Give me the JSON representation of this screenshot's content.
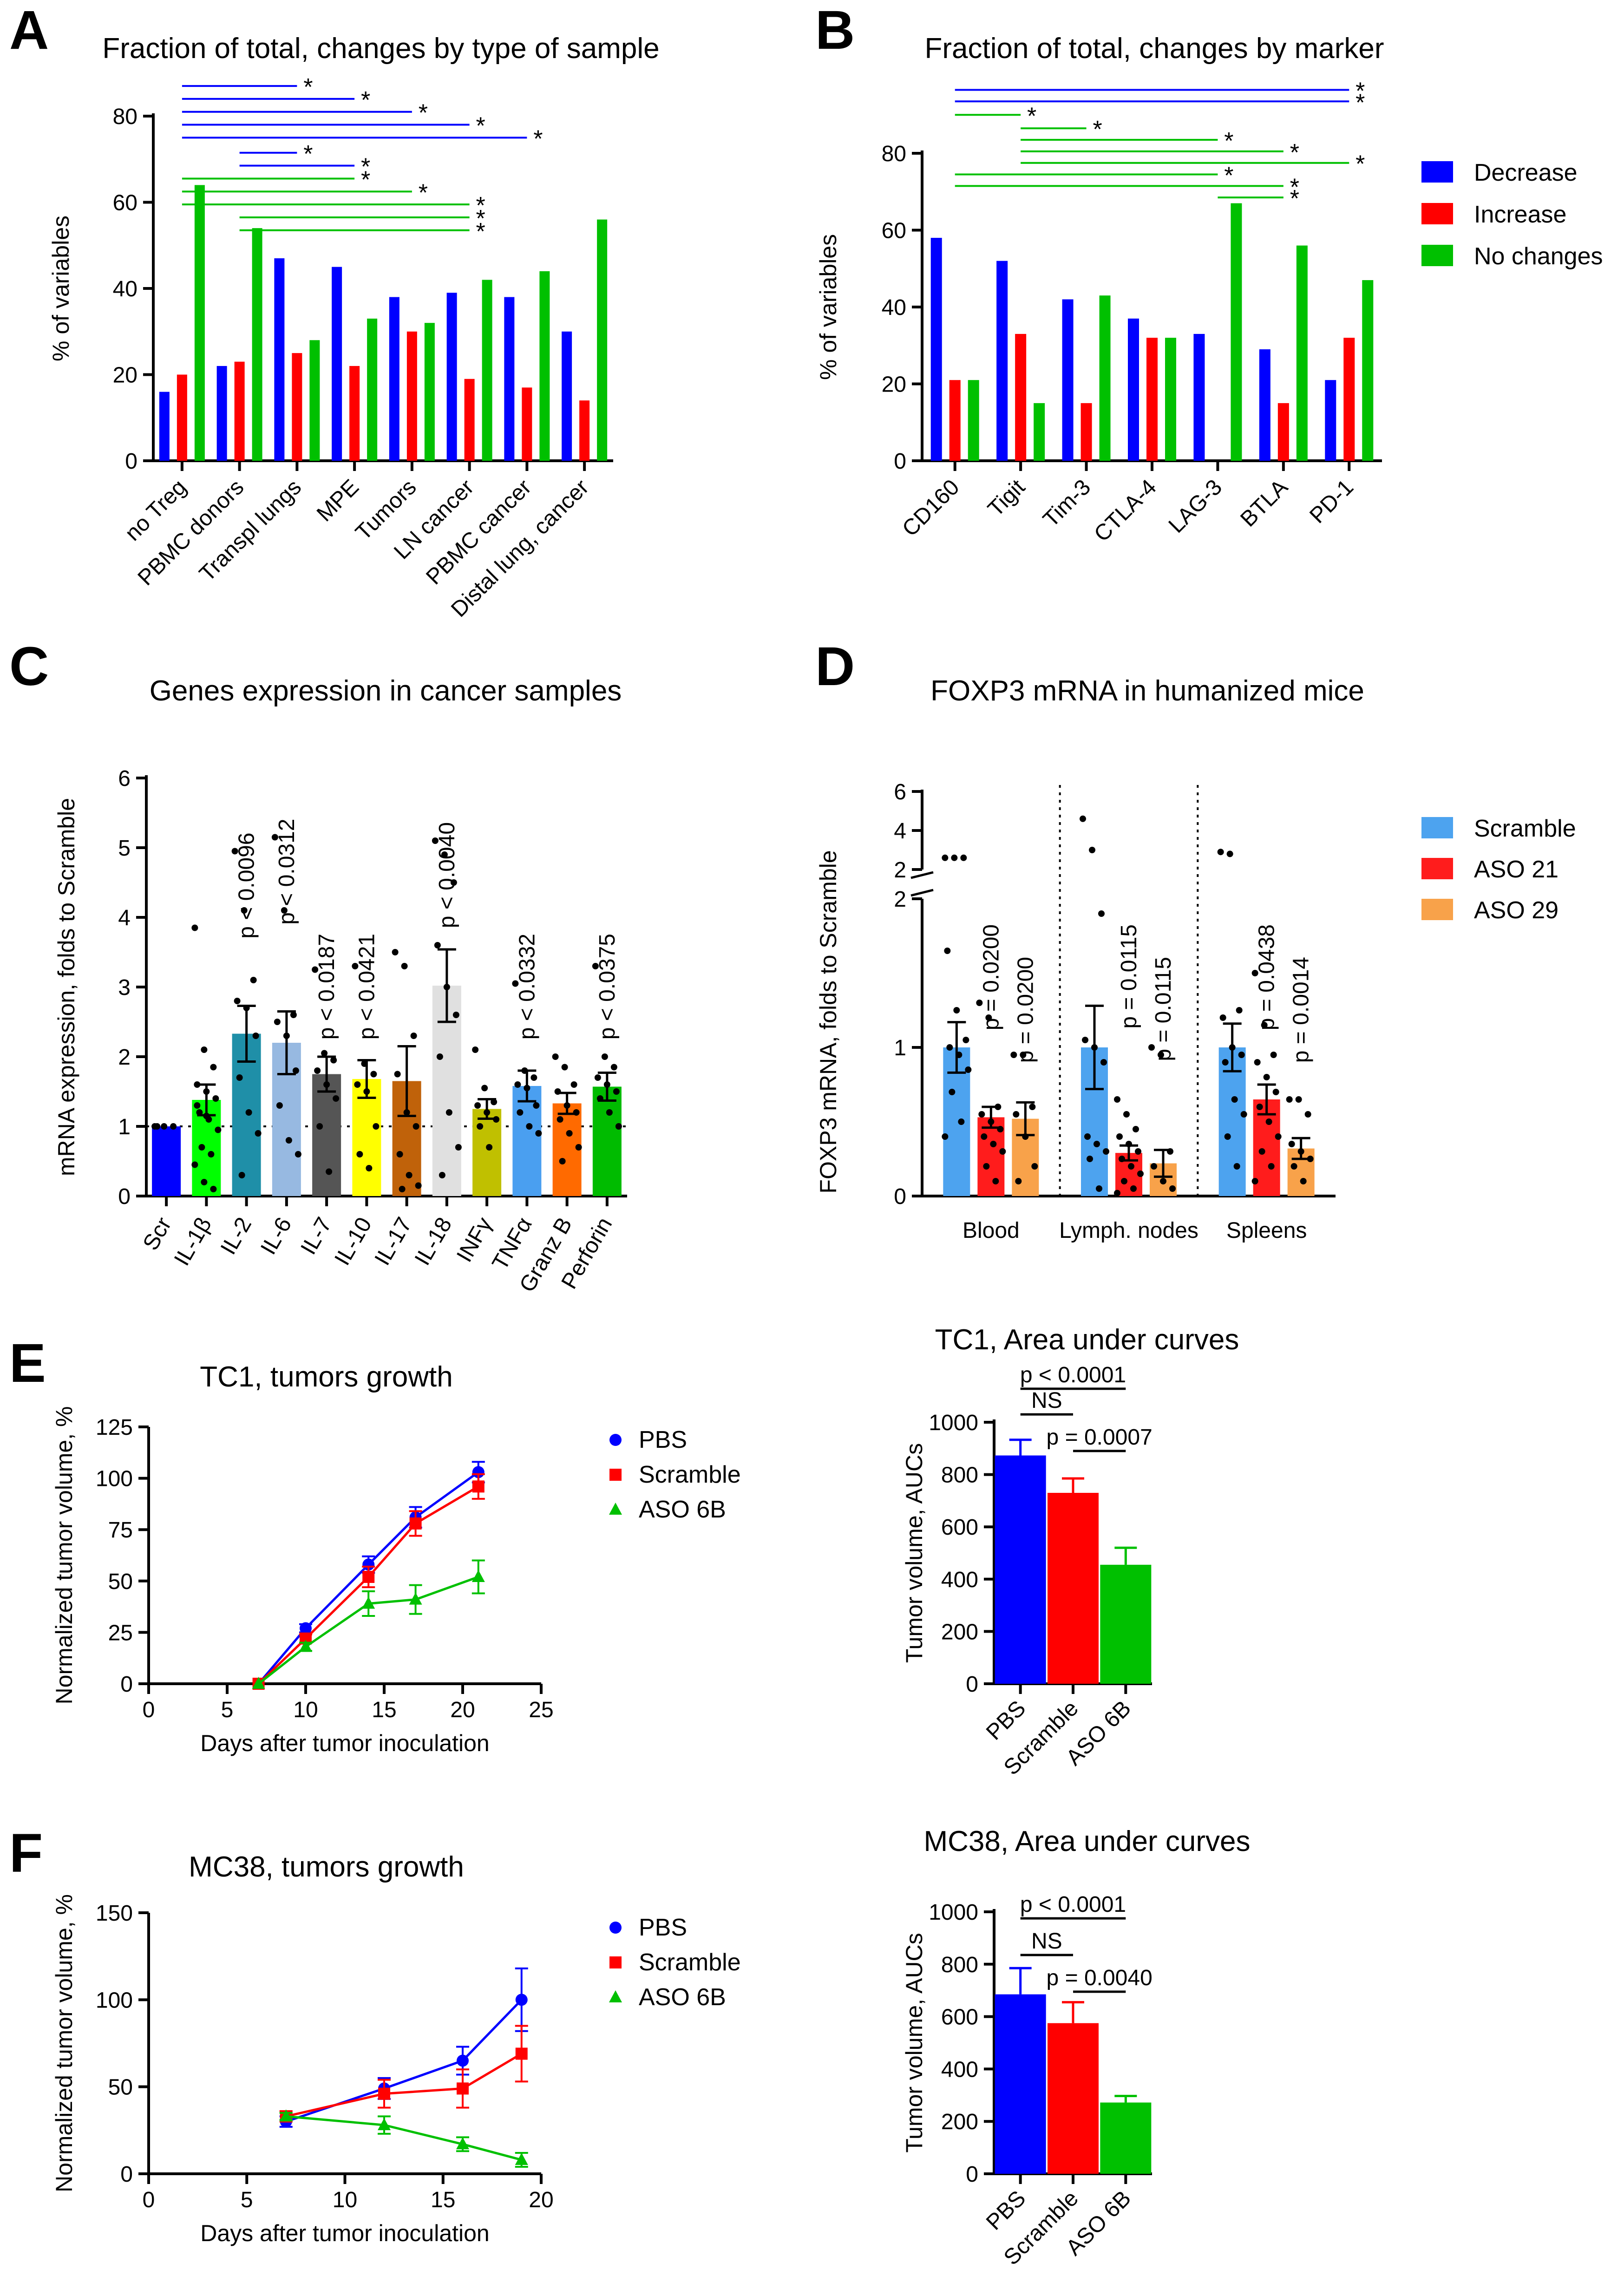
{
  "chart_data": [
    {
      "panel": "A",
      "type": "bar",
      "title": "Fraction of total, changes by type of sample",
      "ylabel": "% of variables",
      "xlabel": "",
      "ylim": [
        0,
        80
      ],
      "yticks": [
        0,
        20,
        40,
        60,
        80
      ],
      "categories": [
        "no Treg",
        "PBMC donors",
        "Transpl lungs",
        "MPE",
        "Tumors",
        "LN cancer",
        "PBMC cancer",
        "Distal lung, cancer"
      ],
      "series": [
        {
          "name": "Decrease",
          "color": "#0000ff",
          "values": [
            16,
            22,
            47,
            45,
            38,
            39,
            38,
            30
          ]
        },
        {
          "name": "Increase",
          "color": "#ff0000",
          "values": [
            20,
            23,
            25,
            22,
            30,
            19,
            17,
            14
          ]
        },
        {
          "name": "No changes",
          "color": "#00c000",
          "values": [
            64,
            54,
            28,
            33,
            32,
            42,
            44,
            56
          ]
        }
      ],
      "significance": [
        {
          "from": 0,
          "to": 2,
          "level": 87,
          "color": "#0000ff",
          "label": "*"
        },
        {
          "from": 0,
          "to": 3,
          "level": 84,
          "color": "#0000ff",
          "label": "*"
        },
        {
          "from": 0,
          "to": 4,
          "level": 81,
          "color": "#0000ff",
          "label": "*"
        },
        {
          "from": 0,
          "to": 5,
          "level": 78,
          "color": "#0000ff",
          "label": "*"
        },
        {
          "from": 0,
          "to": 6,
          "level": 75,
          "color": "#0000ff",
          "label": "*"
        },
        {
          "from": 1,
          "to": 2,
          "level": 71.5,
          "color": "#0000ff",
          "label": "*"
        },
        {
          "from": 1,
          "to": 3,
          "level": 68.5,
          "color": "#0000ff",
          "label": "*"
        },
        {
          "from": 0,
          "to": 3,
          "level": 65.5,
          "color": "#00c000",
          "label": "*"
        },
        {
          "from": 0,
          "to": 4,
          "level": 62.5,
          "color": "#00c000",
          "label": "*"
        },
        {
          "from": 0,
          "to": 5,
          "level": 59.5,
          "color": "#00c000",
          "label": "*"
        },
        {
          "from": 1,
          "to": 5,
          "level": 56.5,
          "color": "#00c000",
          "label": "*"
        },
        {
          "from": 1,
          "to": 5,
          "level": 53.5,
          "color": "#00c000",
          "label": "*"
        }
      ]
    },
    {
      "panel": "B",
      "type": "bar",
      "title": "Fraction of total, changes by marker",
      "ylabel": "% of variables",
      "xlabel": "",
      "ylim": [
        0,
        80
      ],
      "yticks": [
        0,
        20,
        40,
        60,
        80
      ],
      "categories": [
        "CD160",
        "Tigit",
        "Tim-3",
        "CTLA-4",
        "LAG-3",
        "BTLA",
        "PD-1"
      ],
      "series": [
        {
          "name": "Decrease",
          "color": "#0000ff",
          "values": [
            58,
            52,
            42,
            37,
            33,
            29,
            21
          ]
        },
        {
          "name": "Increase",
          "color": "#ff0000",
          "values": [
            21,
            33,
            15,
            32,
            0,
            15,
            32
          ]
        },
        {
          "name": "No changes",
          "color": "#00c000",
          "values": [
            21,
            15,
            43,
            32,
            67,
            56,
            47
          ]
        }
      ],
      "legend": [
        "Decrease",
        "Increase",
        "No changes"
      ],
      "significance": [
        {
          "from": 0,
          "to": 6,
          "level": 96.5,
          "color": "#0000ff",
          "label": "*"
        },
        {
          "from": 0,
          "to": 6,
          "level": 93.5,
          "color": "#0000ff",
          "label": "*"
        },
        {
          "from": 0,
          "to": 1,
          "level": 90,
          "color": "#00c000",
          "label": "*"
        },
        {
          "from": 1,
          "to": 2,
          "level": 86.5,
          "color": "#00c000",
          "label": "*"
        },
        {
          "from": 1,
          "to": 4,
          "level": 83.5,
          "color": "#00c000",
          "label": "*"
        },
        {
          "from": 1,
          "to": 5,
          "level": 80.5,
          "color": "#00c000",
          "label": "*"
        },
        {
          "from": 1,
          "to": 6,
          "level": 77.5,
          "color": "#00c000",
          "label": "*"
        },
        {
          "from": 0,
          "to": 4,
          "level": 74.5,
          "color": "#00c000",
          "label": "*"
        },
        {
          "from": 0,
          "to": 5,
          "level": 71.5,
          "color": "#00c000",
          "label": "*"
        },
        {
          "from": 4,
          "to": 5,
          "level": 68.5,
          "color": "#00c000",
          "label": "*"
        }
      ]
    },
    {
      "panel": "C",
      "type": "bar",
      "title": "Genes expression in cancer samples",
      "ylabel": "mRNA expression, folds to Scramble",
      "xlabel": "",
      "ylim": [
        0,
        6
      ],
      "yticks": [
        0,
        1,
        2,
        3,
        4,
        5,
        6
      ],
      "reference_line": 1,
      "categories": [
        "Scr",
        "IL-1β",
        "IL-2",
        "IL-6",
        "IL-7",
        "IL-10",
        "IL-17",
        "IL-18",
        "INFγ",
        "TNFα",
        "Granz B",
        "Perforin"
      ],
      "values": [
        1.0,
        1.38,
        2.33,
        2.2,
        1.75,
        1.68,
        1.65,
        3.02,
        1.25,
        1.58,
        1.33,
        1.57
      ],
      "errors": [
        0.0,
        0.22,
        0.4,
        0.45,
        0.25,
        0.27,
        0.5,
        0.52,
        0.14,
        0.22,
        0.15,
        0.2
      ],
      "colors": [
        "#0000ff",
        "#00ff00",
        "#1f8fa8",
        "#97b9e1",
        "#555555",
        "#ffff00",
        "#c0620a",
        "#e0e0e0",
        "#c0c000",
        "#4a9ff0",
        "#ff6a00",
        "#00bb00"
      ],
      "points": [
        [
          1,
          1,
          1,
          1
        ],
        [
          3.85,
          2.1,
          1.85,
          1.6,
          1.5,
          1.4,
          1.2,
          1.1,
          0.95,
          0.7,
          0.6,
          0.45,
          0.2,
          0.1,
          1.3,
          1.15
        ],
        [
          4.95,
          4.1,
          3.1,
          2.8,
          2.7,
          2.3,
          1.7,
          1.2,
          0.9,
          0.3
        ],
        [
          5.15,
          4.1,
          2.6,
          2.5,
          2.3,
          1.8,
          1.3,
          0.8,
          0.6
        ],
        [
          3.25,
          2.05,
          1.95,
          1.8,
          1.6,
          1.4,
          1.0,
          0.35
        ],
        [
          3.3,
          1.9,
          1.75,
          1.6,
          1.5,
          1.0,
          0.6,
          0.4
        ],
        [
          3.5,
          3.3,
          2.3,
          1.75,
          1.2,
          1.0,
          0.6,
          0.3,
          0.15,
          0.1
        ],
        [
          5.1,
          4.9,
          4.5,
          3.6,
          3.0,
          2.6,
          2.0,
          1.2,
          0.7,
          0.3
        ],
        [
          2.1,
          1.55,
          1.35,
          1.3,
          1.2,
          1.1,
          1.0,
          0.7
        ],
        [
          3.05,
          1.8,
          1.7,
          1.6,
          1.55,
          1.3,
          1.2,
          1.0,
          0.9
        ],
        [
          2.0,
          1.85,
          1.6,
          1.5,
          1.3,
          1.2,
          1.1,
          0.9,
          0.7,
          0.5
        ],
        [
          3.3,
          2.0,
          1.85,
          1.7,
          1.6,
          1.5,
          1.4,
          1.2,
          1.0
        ]
      ],
      "annotations": [
        {
          "category": 2,
          "label": "p < 0.0096"
        },
        {
          "category": 3,
          "label": "p < 0.0312"
        },
        {
          "category": 4,
          "label": "p < 0.0187"
        },
        {
          "category": 5,
          "label": "p < 0.0421"
        },
        {
          "category": 7,
          "label": "p < 0.0040"
        },
        {
          "category": 9,
          "label": "p < 0.0332"
        },
        {
          "category": 11,
          "label": "p < 0.0375"
        }
      ]
    },
    {
      "panel": "D",
      "type": "bar",
      "title": "FOXP3 mRNA in humanized mice",
      "ylabel": "FOXP3 mRNA, folds  to Scramble",
      "xlabel": "",
      "ylim": [
        0,
        6
      ],
      "yticks": [
        "0",
        "1",
        "2",
        "2",
        "4",
        "6"
      ],
      "axis_break": [
        2,
        2
      ],
      "groups": [
        "Blood",
        "Lymph. nodes",
        "Spleens"
      ],
      "series": [
        {
          "name": "Scramble",
          "color": "#4da3ef",
          "values": [
            1.0,
            1.0,
            1.0
          ],
          "errors": [
            0.17,
            0.28,
            0.16
          ]
        },
        {
          "name": "ASO 21",
          "color": "#ff1c1c",
          "values": [
            0.53,
            0.29,
            0.65
          ],
          "errors": [
            0.07,
            0.05,
            0.1
          ]
        },
        {
          "name": "ASO 29",
          "color": "#f8a24a",
          "values": [
            0.52,
            0.22,
            0.32
          ],
          "errors": [
            0.11,
            0.09,
            0.07
          ]
        }
      ],
      "points": [
        [
          [
            2.6,
            2.6,
            2.6,
            1.65,
            1.25,
            1.05,
            1.0,
            0.95,
            0.85,
            0.7,
            0.5,
            0.4
          ],
          [
            1.3,
            1.2,
            0.6,
            0.55,
            0.5,
            0.45,
            0.4,
            0.35,
            0.3,
            0.2,
            0.1
          ],
          [
            0.95,
            0.95,
            0.6,
            0.55,
            0.4,
            0.2,
            0.1
          ]
        ],
        [
          [
            4.6,
            3.0,
            1.9,
            1.05,
            1.0,
            0.9,
            0.4,
            0.35,
            0.3,
            0.25,
            0.05
          ],
          [
            0.65,
            0.55,
            0.45,
            0.4,
            0.35,
            0.3,
            0.25,
            0.2,
            0.15,
            0.1,
            0.05,
            0.02
          ],
          [
            1.0,
            0.95,
            0.3,
            0.2,
            0.1,
            0.05
          ]
        ],
        [
          [
            2.9,
            2.8,
            1.25,
            1.2,
            1.0,
            0.95,
            0.9,
            0.65,
            0.55,
            0.4,
            0.2
          ],
          [
            1.5,
            1.15,
            0.95,
            0.9,
            0.8,
            0.7,
            0.6,
            0.5,
            0.4,
            0.3,
            0.2,
            0.1
          ],
          [
            0.65,
            0.65,
            0.55,
            0.35,
            0.3,
            0.25,
            0.2,
            0.1
          ]
        ]
      ],
      "annotations": [
        {
          "group": 0,
          "series": 1,
          "label": "p = 0.0200"
        },
        {
          "group": 0,
          "series": 2,
          "label": "p = 0.0200"
        },
        {
          "group": 1,
          "series": 1,
          "label": "p = 0.0115"
        },
        {
          "group": 1,
          "series": 2,
          "label": "p = 0.0115"
        },
        {
          "group": 2,
          "series": 1,
          "label": "p = 0.0438"
        },
        {
          "group": 2,
          "series": 2,
          "label": "p = 0.0014"
        }
      ]
    },
    {
      "panel": "E",
      "type": "line",
      "title": "TC1, tumors growth",
      "xlabel": "Days after tumor inoculation",
      "ylabel": "Normalized tumor volume, %",
      "xlim": [
        0,
        25
      ],
      "ylim": [
        0,
        125
      ],
      "xticks": [
        0,
        5,
        10,
        15,
        20,
        25
      ],
      "yticks": [
        0,
        25,
        50,
        75,
        100,
        125
      ],
      "x": [
        7,
        10,
        14,
        17,
        21
      ],
      "series": [
        {
          "name": "PBS",
          "color": "#0000ff",
          "marker": "circle",
          "values": [
            0,
            27,
            58,
            81,
            103
          ],
          "errors": [
            0,
            2,
            4,
            5,
            5
          ]
        },
        {
          "name": "Scramble",
          "color": "#ff0000",
          "marker": "square",
          "values": [
            0,
            22,
            52,
            78,
            96
          ],
          "errors": [
            0,
            2,
            5,
            6,
            6
          ]
        },
        {
          "name": "ASO 6B",
          "color": "#00c000",
          "marker": "triangle",
          "values": [
            0,
            18,
            39,
            41,
            52
          ],
          "errors": [
            0,
            2,
            6,
            7,
            8
          ]
        }
      ]
    },
    {
      "panel": "E",
      "type": "bar",
      "title": "TC1, Area under curves",
      "xlabel": "",
      "ylabel": "Tumor volume, AUCs",
      "ylim": [
        0,
        1000
      ],
      "yticks": [
        0,
        200,
        400,
        600,
        800,
        1000
      ],
      "categories": [
        "PBS",
        "Scramble",
        "ASO 6B"
      ],
      "values": [
        873,
        730,
        455
      ],
      "errors": [
        60,
        55,
        65
      ],
      "colors": [
        "#0000ff",
        "#ff0000",
        "#00c000"
      ],
      "brackets": [
        {
          "from": 0,
          "to": 2,
          "level": 1128,
          "label": "p < 0.0001"
        },
        {
          "from": 0,
          "to": 1,
          "level": 1030,
          "label": "NS"
        },
        {
          "from": 1,
          "to": 2,
          "level": 890,
          "label": "p = 0.0007"
        }
      ]
    },
    {
      "panel": "F",
      "type": "line",
      "title": "MC38, tumors growth",
      "xlabel": "Days after tumor inoculation",
      "ylabel": "Normalized tumor volume, %",
      "xlim": [
        0,
        20
      ],
      "ylim": [
        0,
        150
      ],
      "xticks": [
        0,
        5,
        10,
        15,
        20
      ],
      "yticks": [
        0,
        50,
        100,
        150
      ],
      "x": [
        7,
        12,
        16,
        19
      ],
      "series": [
        {
          "name": "PBS",
          "color": "#0000ff",
          "marker": "circle",
          "values": [
            30,
            49,
            65,
            100
          ],
          "errors": [
            3,
            6,
            8,
            18
          ]
        },
        {
          "name": "Scramble",
          "color": "#ff0000",
          "marker": "square",
          "values": [
            33,
            46,
            49,
            69
          ],
          "errors": [
            3,
            8,
            11,
            16
          ]
        },
        {
          "name": "ASO 6B",
          "color": "#00c000",
          "marker": "triangle",
          "values": [
            33,
            28,
            17,
            8
          ],
          "errors": [
            2,
            5,
            4,
            4
          ]
        }
      ]
    },
    {
      "panel": "F",
      "type": "bar",
      "title": "MC38, Area under curves",
      "xlabel": "",
      "ylabel": "Tumor volume, AUCs",
      "ylim": [
        0,
        1000
      ],
      "yticks": [
        0,
        200,
        400,
        600,
        800,
        1000
      ],
      "categories": [
        "PBS",
        "Scramble",
        "ASO 6B"
      ],
      "values": [
        685,
        575,
        272
      ],
      "errors": [
        100,
        80,
        25
      ],
      "colors": [
        "#0000ff",
        "#ff0000",
        "#00c000"
      ],
      "brackets": [
        {
          "from": 0,
          "to": 2,
          "level": 975,
          "label": "p < 0.0001"
        },
        {
          "from": 0,
          "to": 1,
          "level": 835,
          "label": "NS"
        },
        {
          "from": 1,
          "to": 2,
          "level": 695,
          "label": "p = 0.0040"
        }
      ]
    }
  ]
}
